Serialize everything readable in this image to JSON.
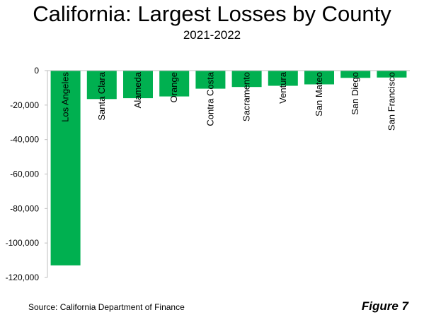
{
  "chart_data": {
    "type": "bar",
    "title": "California: Largest Losses by County",
    "subtitle": "2021-2022",
    "categories": [
      "Los Angeles",
      "Santa Clara",
      "Alameda",
      "Orange",
      "Contra Costa",
      "Sacramento",
      "Ventura",
      "San Mateo",
      "San Diego",
      "San Francisco"
    ],
    "values": [
      -113000,
      -16500,
      -16000,
      -15000,
      -10500,
      -9500,
      -8800,
      -8000,
      -4200,
      -4000
    ],
    "ylim": [
      -120000,
      0
    ],
    "yticks": [
      0,
      -20000,
      -40000,
      -60000,
      -80000,
      -100000,
      -120000
    ],
    "ytick_labels": [
      "0",
      "-20,000",
      "-40,000",
      "-60,000",
      "-80,000",
      "-100,000",
      "-120,000"
    ],
    "bar_color": "#00b050",
    "grid": false,
    "legend": "none"
  },
  "source": "Source: California Department of Finance",
  "figure_label": "Figure 7"
}
